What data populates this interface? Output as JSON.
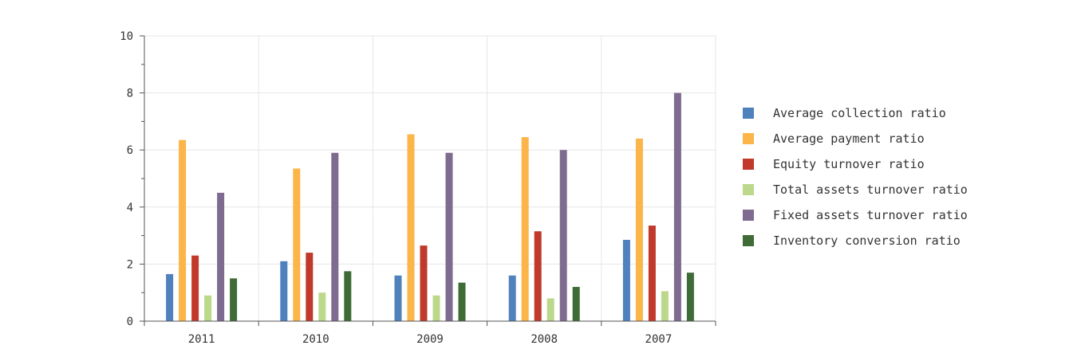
{
  "chart_data": {
    "type": "bar",
    "categories": [
      "2011",
      "2010",
      "2009",
      "2008",
      "2007"
    ],
    "ylim": [
      0,
      10
    ],
    "yticks": [
      0,
      2,
      4,
      6,
      8,
      10
    ],
    "grid": true,
    "legend_position": "right",
    "series": [
      {
        "name": "Average collection ratio",
        "color": "#4f81bd",
        "values": [
          1.65,
          2.1,
          1.6,
          1.6,
          2.85
        ]
      },
      {
        "name": "Average payment ratio",
        "color": "#fbb549",
        "values": [
          6.35,
          5.35,
          6.55,
          6.45,
          6.4
        ]
      },
      {
        "name": "Equity turnover ratio",
        "color": "#c0392b",
        "values": [
          2.3,
          2.4,
          2.65,
          3.15,
          3.35
        ]
      },
      {
        "name": "Total assets turnover ratio",
        "color": "#bcd88a",
        "values": [
          0.9,
          1.0,
          0.9,
          0.8,
          1.05
        ]
      },
      {
        "name": "Fixed assets turnover ratio",
        "color": "#7e6b8f",
        "values": [
          4.5,
          5.9,
          5.9,
          6.0,
          8.0
        ]
      },
      {
        "name": "Inventory conversion ratio",
        "color": "#3f6b37",
        "values": [
          1.5,
          1.75,
          1.35,
          1.2,
          1.7
        ]
      }
    ]
  }
}
